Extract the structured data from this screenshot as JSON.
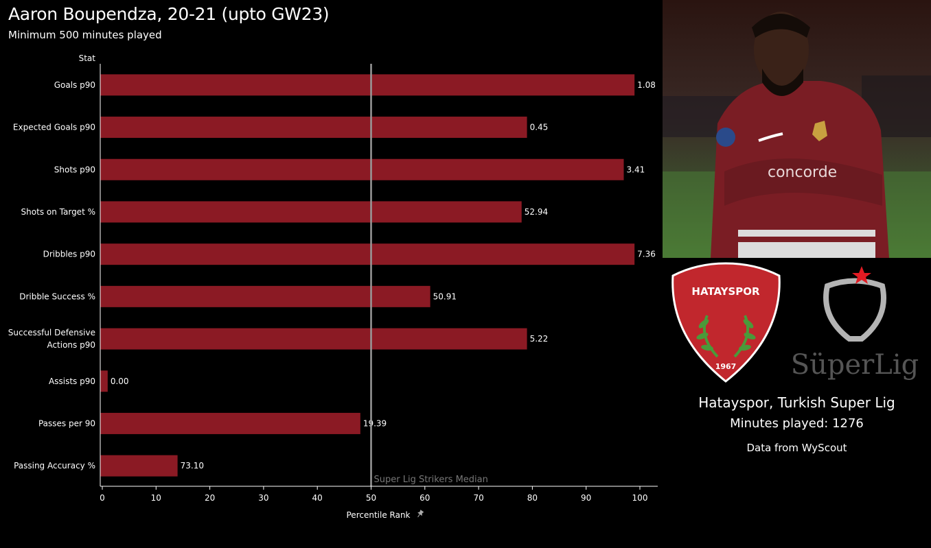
{
  "header": {
    "title": "Aaron Boupendza, 20-21 (upto GW23)",
    "subtitle": "Minimum 500 minutes played"
  },
  "colors": {
    "bar": "#8b1a24",
    "median_line": "#9a9a9a",
    "axis": "#ffffff"
  },
  "chart_data": {
    "type": "bar",
    "orientation": "horizontal",
    "row_header": "Stat",
    "categories": [
      "Goals p90",
      "Expected Goals p90",
      "Shots p90",
      "Shots on Target %",
      "Dribbles p90",
      "Dribble Success %",
      "Successful Defensive Actions p90",
      "Assists p90",
      "Passes per 90",
      "Passing Accuracy %"
    ],
    "category_lines": [
      [
        "Goals p90"
      ],
      [
        "Expected Goals p90"
      ],
      [
        "Shots p90"
      ],
      [
        "Shots on Target %"
      ],
      [
        "Dribbles p90"
      ],
      [
        "Dribble Success %"
      ],
      [
        "Successful",
        "Defensive",
        "Actions p90"
      ],
      [
        "Assists p90"
      ],
      [
        "Passes per 90"
      ],
      [
        "Passing Accuracy %"
      ]
    ],
    "percentile_values": [
      99,
      79,
      97,
      78,
      99,
      61,
      79,
      1,
      48,
      14
    ],
    "data_labels": [
      "1.08",
      "0.45",
      "3.41",
      "52.94",
      "7.36",
      "50.91",
      "5.22",
      "0.00",
      "19.39",
      "73.10"
    ],
    "xlabel": "Percentile Rank",
    "xlim": [
      0,
      100
    ],
    "xticks": [
      0,
      10,
      20,
      30,
      40,
      50,
      60,
      70,
      80,
      90,
      100
    ],
    "reference_line": {
      "value": 50,
      "label": "Super Lig Strikers Median"
    },
    "grid": false,
    "legend": "none"
  },
  "side_panel": {
    "club_logo_text": "HATAYSPOR",
    "club_logo_year": "1967",
    "league_logo_text": "SüperLig",
    "club_line": "Hatayspor, Turkish Super Lig",
    "minutes_line": "Minutes played: 1276",
    "source_line": "Data from WyScout",
    "photo_icon": "player-photo",
    "pin_icon": "pin-icon"
  }
}
